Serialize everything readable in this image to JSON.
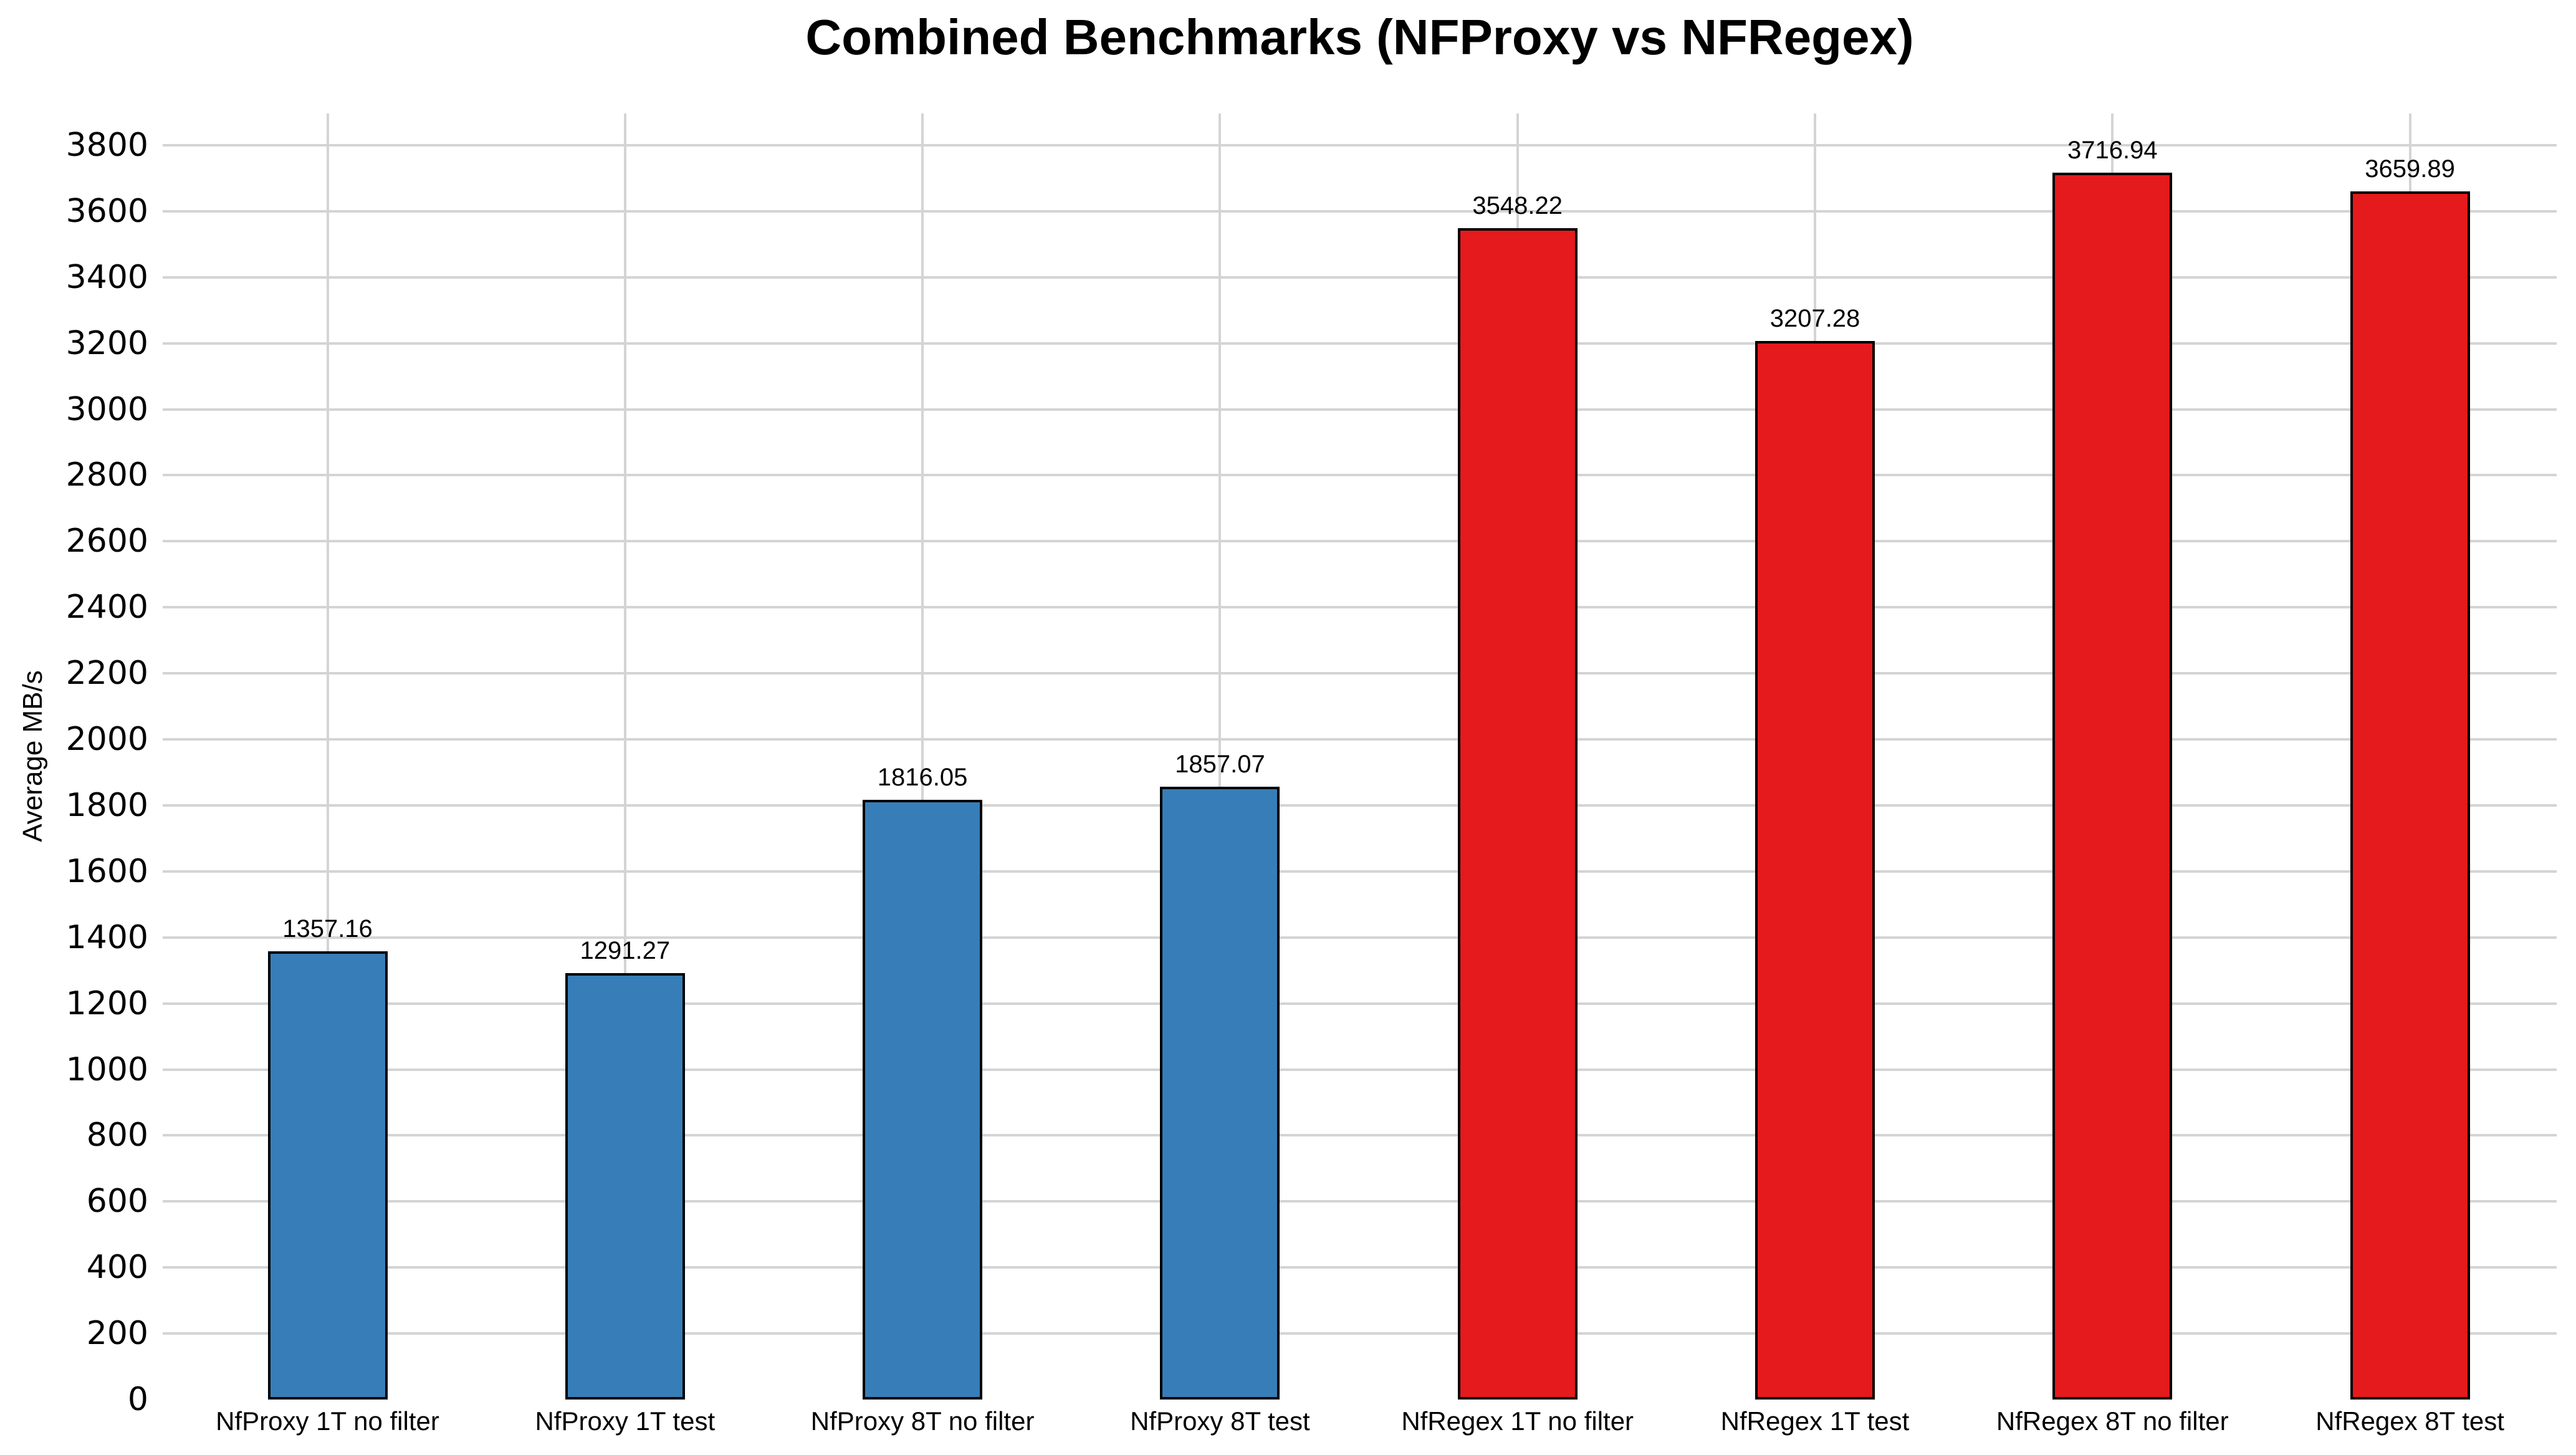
{
  "chart_data": {
    "type": "bar",
    "title": "Combined Benchmarks (NFProxy vs NFRegex)",
    "xlabel": "",
    "ylabel": "Average MB/s",
    "categories": [
      "NfProxy 1T no filter",
      "NfProxy 1T test",
      "NfProxy 8T no filter",
      "NfProxy 8T test",
      "NfRegex 1T no filter",
      "NfRegex 1T test",
      "NfRegex 8T no filter",
      "NfRegex 8T test"
    ],
    "values": [
      1357.16,
      1291.27,
      1816.05,
      1857.07,
      3548.22,
      3207.28,
      3716.94,
      3659.89
    ],
    "value_labels": [
      "1357.16",
      "1291.27",
      "1816.05",
      "1857.07",
      "3548.22",
      "3207.28",
      "3716.94",
      "3659.89"
    ],
    "bar_colors": [
      "#377eb8",
      "#377eb8",
      "#377eb8",
      "#377eb8",
      "#e41a1c",
      "#e41a1c",
      "#e41a1c",
      "#e41a1c"
    ],
    "groups": [
      {
        "name": "NfProxy",
        "color": "#377eb8",
        "indices": [
          0,
          1,
          2,
          3
        ]
      },
      {
        "name": "NfRegex",
        "color": "#e41a1c",
        "indices": [
          4,
          5,
          6,
          7
        ]
      }
    ],
    "yticks": [
      0,
      200,
      400,
      600,
      800,
      1000,
      1200,
      1400,
      1600,
      1800,
      2000,
      2200,
      2400,
      2600,
      2800,
      3000,
      3200,
      3400,
      3600,
      3800
    ],
    "ylim": [
      0,
      3900
    ],
    "grid": true,
    "legend": false,
    "colors": {
      "background": "#ffffff",
      "gridline": "#d4d4d4",
      "bar_border": "#000000",
      "text": "#000000"
    }
  }
}
